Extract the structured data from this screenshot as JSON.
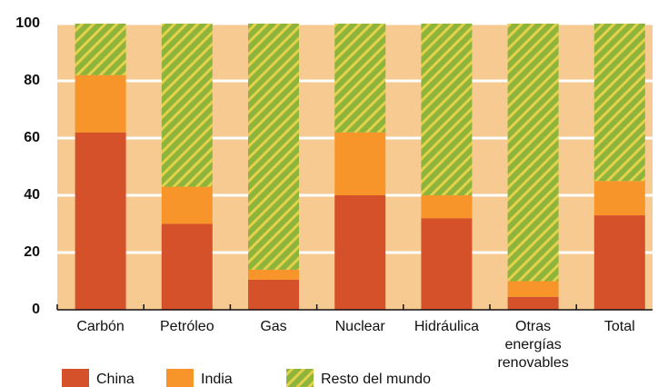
{
  "chart_data": {
    "type": "stacked_bar",
    "categories": [
      "Carbón",
      "Petróleo",
      "Gas",
      "Nuclear",
      "Hidráulica",
      "Otras energías renovables",
      "Total"
    ],
    "series": [
      {
        "name": "China",
        "color": "#d4512a",
        "values": [
          62,
          30,
          10.5,
          40,
          32,
          4.5,
          33
        ]
      },
      {
        "name": "India",
        "color": "#f7952a",
        "values": [
          20,
          13,
          3.5,
          22,
          8,
          5.5,
          12
        ]
      },
      {
        "name": "Resto del mundo",
        "color": "#8fb43c",
        "hatch": "#e3d24a",
        "values": [
          18,
          57,
          86,
          38,
          60,
          90,
          55
        ]
      }
    ],
    "ylim": [
      0,
      100
    ],
    "yticks": [
      0,
      20,
      40,
      60,
      80,
      100
    ],
    "grid": true,
    "background": "#f6ca91",
    "legend": "bottom"
  }
}
